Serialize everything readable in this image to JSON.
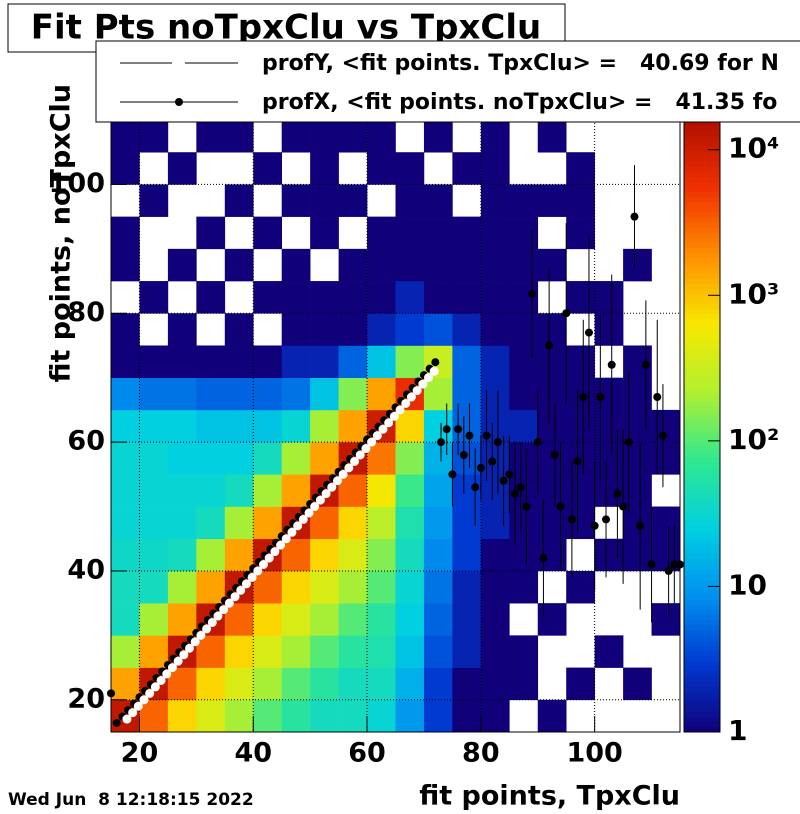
{
  "chart_data": {
    "type": "heatmap",
    "title": "Fit Pts noTpxClu vs TpxClu",
    "xlabel": "fit points, TpxClu",
    "ylabel": "fit points, noTpxClu",
    "xlim": [
      15,
      115
    ],
    "ylim": [
      15,
      110
    ],
    "xticks": [
      20,
      40,
      60,
      80,
      100
    ],
    "yticks": [
      20,
      40,
      60,
      80,
      100
    ],
    "grid": true,
    "log_z": true,
    "legend": "top",
    "xbins": [
      15,
      20,
      25,
      30,
      35,
      40,
      45,
      50,
      55,
      60,
      65,
      70,
      75,
      80,
      85,
      90,
      95,
      100,
      105,
      110,
      115
    ],
    "ybins": [
      15,
      20,
      25,
      30,
      35,
      40,
      45,
      50,
      55,
      60,
      65,
      70,
      75,
      80,
      85,
      90,
      95,
      100,
      105,
      110
    ],
    "z": [
      [
        12000,
        3000,
        800,
        400,
        200,
        100,
        60,
        40,
        40,
        30,
        10,
        3,
        1,
        1,
        0,
        1,
        0,
        0,
        0,
        0
      ],
      [
        1500,
        12000,
        3000,
        800,
        400,
        200,
        100,
        60,
        40,
        40,
        15,
        3,
        1,
        1,
        1,
        0,
        1,
        0,
        1,
        0
      ],
      [
        200,
        1500,
        12000,
        3000,
        800,
        400,
        200,
        100,
        60,
        50,
        20,
        4,
        2,
        1,
        1,
        0,
        0,
        1,
        0,
        0
      ],
      [
        40,
        200,
        1500,
        12000,
        3000,
        800,
        400,
        200,
        100,
        60,
        25,
        5,
        2,
        1,
        0,
        1,
        0,
        0,
        0,
        1
      ],
      [
        40,
        40,
        200,
        1500,
        12000,
        3000,
        800,
        400,
        200,
        100,
        30,
        6,
        2,
        1,
        1,
        0,
        1,
        0,
        0,
        0
      ],
      [
        35,
        35,
        40,
        200,
        1500,
        12000,
        3000,
        800,
        400,
        150,
        40,
        8,
        3,
        1,
        1,
        1,
        0,
        1,
        1,
        1
      ],
      [
        30,
        30,
        30,
        40,
        200,
        1500,
        12000,
        3000,
        800,
        250,
        50,
        10,
        3,
        2,
        1,
        1,
        1,
        0,
        1,
        1
      ],
      [
        30,
        30,
        30,
        30,
        40,
        200,
        1500,
        12000,
        3000,
        600,
        80,
        12,
        3,
        2,
        1,
        1,
        1,
        1,
        1,
        0
      ],
      [
        30,
        30,
        25,
        25,
        25,
        40,
        200,
        1500,
        12000,
        2500,
        150,
        15,
        4,
        2,
        1,
        1,
        1,
        1,
        1,
        1
      ],
      [
        25,
        25,
        25,
        20,
        20,
        20,
        30,
        200,
        1500,
        10000,
        800,
        25,
        5,
        2,
        2,
        1,
        1,
        1,
        1,
        1
      ],
      [
        8,
        6,
        6,
        5,
        5,
        5,
        6,
        20,
        150,
        1500,
        6000,
        200,
        5,
        2,
        1,
        1,
        1,
        1,
        1,
        0
      ],
      [
        1,
        1,
        1,
        1,
        1,
        1,
        2,
        2,
        5,
        20,
        150,
        300,
        5,
        2,
        1,
        1,
        1,
        0,
        1,
        0
      ],
      [
        1,
        0,
        1,
        0,
        1,
        0,
        1,
        1,
        1,
        2,
        3,
        4,
        2,
        1,
        1,
        1,
        0,
        1,
        0,
        0
      ],
      [
        0,
        1,
        0,
        1,
        0,
        1,
        1,
        1,
        1,
        1,
        2,
        1,
        1,
        1,
        1,
        0,
        1,
        1,
        0,
        0
      ],
      [
        1,
        0,
        1,
        0,
        1,
        0,
        1,
        0,
        1,
        1,
        1,
        1,
        1,
        1,
        1,
        1,
        0,
        0,
        1,
        0
      ],
      [
        1,
        0,
        0,
        1,
        0,
        1,
        0,
        1,
        0,
        1,
        1,
        1,
        1,
        1,
        1,
        0,
        1,
        0,
        0,
        0
      ],
      [
        0,
        1,
        0,
        0,
        1,
        0,
        1,
        1,
        1,
        0,
        1,
        1,
        0,
        1,
        1,
        1,
        1,
        0,
        0,
        0
      ],
      [
        1,
        0,
        1,
        0,
        0,
        1,
        0,
        1,
        0,
        1,
        1,
        0,
        1,
        1,
        0,
        0,
        1,
        0,
        0,
        0
      ],
      [
        1,
        1,
        0,
        1,
        1,
        0,
        1,
        1,
        1,
        1,
        0,
        1,
        0,
        1,
        0,
        1,
        0,
        0,
        0,
        0
      ]
    ],
    "zlim": [
      1,
      16000
    ],
    "zticks": [
      1,
      10,
      {
        "value": 100,
        "label": "10²"
      },
      {
        "value": 1000,
        "label": "10³"
      },
      {
        "value": 10000,
        "label": "10⁴"
      }
    ],
    "palette": [
      "#10007a",
      "#0038d0",
      "#0090f0",
      "#00d0e0",
      "#30e890",
      "#b0f030",
      "#f8e800",
      "#ff9000",
      "#f03000",
      "#b01000"
    ],
    "series": [
      {
        "name": "profY, <fit points. TpxClu> =   40.69 for N",
        "color": "#ffffff",
        "y": [
          17,
          18,
          19,
          20,
          21,
          22,
          23,
          24,
          25,
          26,
          27,
          28,
          29,
          30,
          31,
          32,
          33,
          34,
          35,
          36,
          37,
          38,
          39,
          40,
          41,
          42,
          43,
          44,
          45,
          46,
          47,
          48,
          49,
          50,
          51,
          52,
          53,
          54,
          55,
          56,
          57,
          58,
          59,
          60,
          61,
          62,
          63,
          64,
          65,
          66,
          67,
          68,
          69,
          70,
          71
        ],
        "x": [
          17.8,
          18.8,
          19.8,
          20.8,
          21.8,
          22.8,
          23.8,
          24.8,
          25.8,
          26.8,
          27.8,
          28.8,
          29.8,
          30.8,
          31.8,
          32.8,
          33.8,
          34.8,
          35.8,
          36.8,
          37.8,
          38.8,
          39.8,
          40.8,
          41.8,
          42.8,
          43.8,
          44.8,
          45.8,
          46.8,
          47.8,
          48.8,
          49.8,
          50.8,
          51.8,
          52.8,
          53.8,
          54.8,
          55.8,
          56.8,
          57.8,
          58.8,
          59.8,
          60.8,
          61.8,
          62.8,
          63.8,
          64.8,
          65.8,
          66.8,
          67.8,
          68.8,
          69.8,
          70.8,
          71.8
        ]
      },
      {
        "name": "profX, <fit points. noTpxClu> =   41.35 fo",
        "color": "#000000",
        "x": [
          15,
          16,
          17,
          18,
          19,
          20,
          21,
          22,
          23,
          24,
          25,
          26,
          27,
          28,
          29,
          30,
          31,
          32,
          33,
          34,
          35,
          36,
          37,
          38,
          39,
          40,
          41,
          42,
          43,
          44,
          45,
          46,
          47,
          48,
          49,
          50,
          51,
          52,
          53,
          54,
          55,
          56,
          57,
          58,
          59,
          60,
          61,
          62,
          63,
          64,
          65,
          66,
          67,
          68,
          69,
          70,
          71,
          72,
          73,
          74,
          75,
          76,
          77,
          78,
          79,
          80,
          81,
          82,
          83,
          84,
          85,
          86,
          87,
          88,
          89,
          90,
          91,
          92,
          93,
          94,
          95,
          96,
          97,
          98,
          99,
          100,
          101,
          102,
          103,
          104,
          105,
          106,
          107,
          108,
          109,
          110,
          111,
          112,
          113,
          114,
          115
        ],
        "y": [
          21,
          16.4,
          17.4,
          18.4,
          19.4,
          20.4,
          21.4,
          22.4,
          23.4,
          24.4,
          25.4,
          26.4,
          27.4,
          28.4,
          29.4,
          30.4,
          31.4,
          32.4,
          33.4,
          34.4,
          35.4,
          36.4,
          37.4,
          38.4,
          39.4,
          40.4,
          41.4,
          42.4,
          43.4,
          44.4,
          45.4,
          46.4,
          47.4,
          48.4,
          49.4,
          50.4,
          51.4,
          52.4,
          53.4,
          54.4,
          55.4,
          56.4,
          57.4,
          58.4,
          59.4,
          60.4,
          61.4,
          62.4,
          63.4,
          64.4,
          65.4,
          66.4,
          67.4,
          68.4,
          69.4,
          70.4,
          71.4,
          72.4,
          60,
          62,
          55,
          62,
          58,
          61,
          53,
          56,
          61,
          57,
          60,
          54,
          55,
          52,
          53,
          50,
          83,
          60,
          42,
          75,
          58,
          50,
          80,
          48,
          57,
          67,
          77,
          47,
          67,
          48,
          72,
          52,
          50,
          60,
          95,
          47,
          72,
          41,
          67,
          61,
          40,
          41,
          41
        ],
        "errors": [
          0.5,
          0.2,
          0.2,
          0.2,
          0.2,
          0.2,
          0.2,
          0.2,
          0.2,
          0.2,
          0.2,
          0.2,
          0.2,
          0.2,
          0.2,
          0.2,
          0.2,
          0.2,
          0.2,
          0.2,
          0.2,
          0.2,
          0.2,
          0.2,
          0.2,
          0.2,
          0.2,
          0.2,
          0.2,
          0.2,
          0.2,
          0.2,
          0.2,
          0.2,
          0.2,
          0.2,
          0.2,
          0.2,
          0.2,
          0.2,
          0.2,
          0.2,
          0.2,
          0.2,
          0.2,
          0.2,
          0.2,
          0.2,
          0.2,
          0.2,
          0.2,
          0.2,
          0.2,
          0.2,
          0.2,
          0.2,
          0.2,
          0.3,
          3,
          4,
          5,
          4,
          6,
          5,
          6,
          5,
          7,
          6,
          8,
          7,
          6,
          8,
          7,
          9,
          10,
          8,
          9,
          12,
          8,
          10,
          14,
          9,
          11,
          12,
          15,
          10,
          13,
          9,
          14,
          10,
          12,
          11,
          8,
          13,
          10,
          9,
          12,
          8,
          7,
          6,
          6
        ]
      }
    ]
  },
  "timestamp": "Wed Jun  8 12:18:15 2022"
}
